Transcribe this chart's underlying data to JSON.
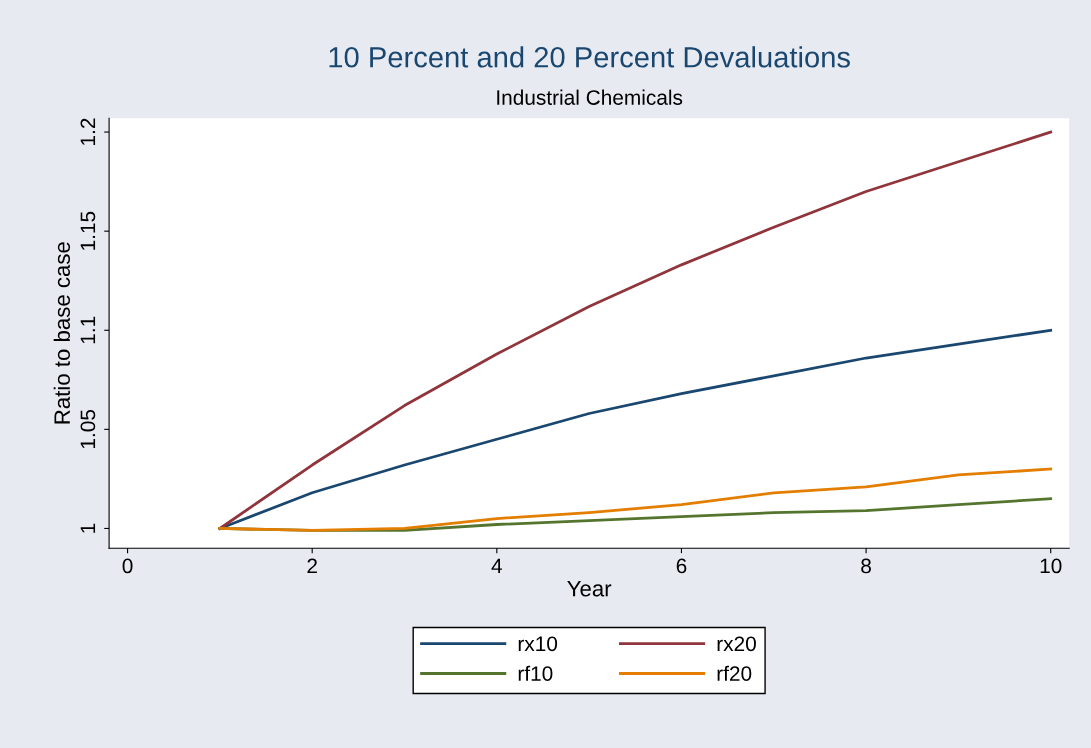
{
  "chart_data": {
    "type": "line",
    "title": "10 Percent and 20 Percent Devaluations",
    "subtitle": "Industrial Chemicals",
    "xlabel": "Year",
    "ylabel": "Ratio to base case",
    "x": [
      1,
      2,
      3,
      4,
      5,
      6,
      7,
      8,
      9,
      10
    ],
    "series": [
      {
        "name": "rx10",
        "color": "#1a476f",
        "values": [
          1.0,
          1.018,
          1.032,
          1.045,
          1.058,
          1.068,
          1.077,
          1.086,
          1.093,
          1.1
        ]
      },
      {
        "name": "rx20",
        "color": "#90353b",
        "values": [
          1.0,
          1.032,
          1.062,
          1.088,
          1.112,
          1.133,
          1.152,
          1.17,
          1.185,
          1.2
        ]
      },
      {
        "name": "rf10",
        "color": "#55752f",
        "values": [
          1.0,
          0.999,
          0.999,
          1.002,
          1.004,
          1.006,
          1.008,
          1.009,
          1.012,
          1.015
        ]
      },
      {
        "name": "rf20",
        "color": "#e37e00",
        "values": [
          1.0,
          0.999,
          1.0,
          1.005,
          1.008,
          1.012,
          1.018,
          1.021,
          1.027,
          1.03
        ]
      }
    ],
    "xlim": [
      -0.2,
      10.2
    ],
    "ylim": [
      0.99,
      1.207
    ],
    "xticks": [
      0,
      2,
      4,
      6,
      8,
      10
    ],
    "yticks": [
      1,
      1.05,
      1.1,
      1.15,
      1.2
    ],
    "grid": false,
    "legend": "bottom",
    "marker": "none",
    "line_style": "solid"
  }
}
